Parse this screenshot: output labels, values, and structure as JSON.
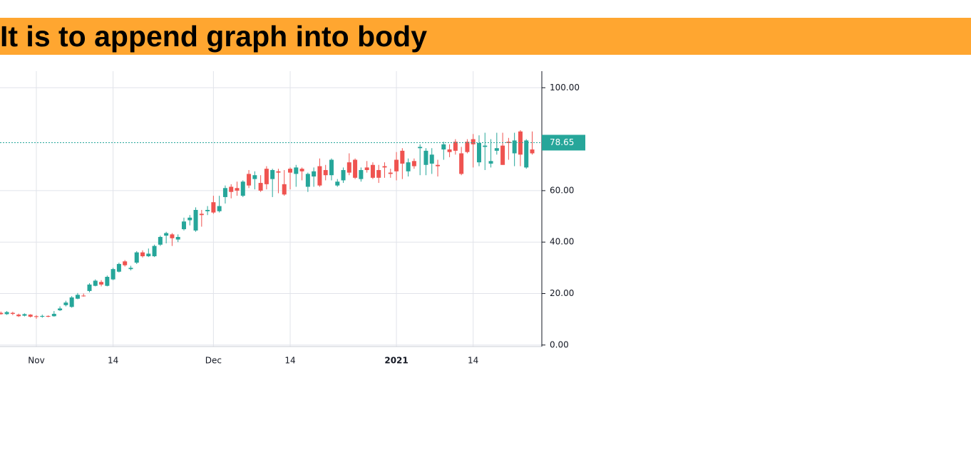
{
  "header": {
    "title": "It is to append graph into body"
  },
  "chart_data": {
    "type": "candlestick",
    "categories": [
      null,
      null,
      null,
      null,
      null,
      null,
      "Nov",
      null,
      null,
      null,
      null,
      null,
      null,
      null,
      null,
      null,
      null,
      null,
      null,
      "14",
      null,
      null,
      null,
      null,
      null,
      null,
      null,
      null,
      null,
      null,
      null,
      null,
      null,
      null,
      null,
      null,
      "Dec",
      null,
      null,
      null,
      null,
      null,
      null,
      null,
      null,
      null,
      null,
      null,
      null,
      "14",
      null,
      null,
      null,
      null,
      null,
      null,
      null,
      null,
      null,
      null,
      null,
      null,
      null,
      null,
      null,
      null,
      null,
      "2021",
      null,
      null,
      null,
      null,
      null,
      null,
      null,
      null,
      null,
      null,
      null,
      null,
      "14",
      null,
      null,
      null,
      null,
      null,
      null,
      null,
      null,
      null,
      null
    ],
    "open": [
      12.5,
      12.0,
      12.5,
      11.8,
      11.4,
      11.8,
      11.2,
      11.0,
      11.3,
      11.2,
      13.5,
      15.5,
      14.8,
      18.0,
      19.2,
      21.0,
      23.0,
      24.5,
      23.0,
      25.5,
      28.5,
      32.5,
      29.5,
      32.0,
      36.0,
      34.5,
      34.5,
      39.0,
      42.5,
      43.0,
      41.0,
      45.0,
      48.5,
      44.5,
      51.0,
      52.0,
      55.5,
      52.0,
      57.5,
      61.5,
      61.0,
      58.0,
      66.5,
      64.5,
      63.0,
      68.5,
      64.5,
      67.5,
      62.5,
      68.5,
      66.5,
      68.5,
      61.5,
      65.5,
      69.5,
      68.0,
      66.0,
      62.0,
      64.0,
      71.0,
      72.0,
      64.5,
      69.0,
      70.0,
      68.0,
      69.5,
      67.0,
      72.0,
      75.5,
      67.5,
      71.5,
      76.5,
      70.0,
      70.5,
      70.0,
      76.0,
      76.0,
      79.0,
      74.5,
      79.0,
      80.0,
      71.0,
      77.0,
      70.5,
      75.5,
      77.5,
      79.0,
      74.5,
      83.0,
      69.0,
      76.0
    ],
    "high": [
      13.0,
      13.2,
      12.9,
      12.2,
      12.3,
      12.0,
      11.6,
      11.8,
      11.5,
      13.2,
      15.0,
      17.2,
      19.0,
      20.2,
      20.0,
      24.0,
      25.5,
      25.2,
      27.0,
      30.0,
      32.0,
      33.0,
      30.8,
      36.5,
      36.8,
      37.5,
      39.0,
      42.5,
      44.0,
      43.5,
      43.0,
      49.5,
      50.5,
      53.5,
      52.5,
      54.0,
      58.0,
      58.0,
      62.0,
      62.5,
      63.5,
      64.0,
      68.0,
      67.5,
      66.0,
      69.5,
      68.5,
      68.5,
      68.0,
      69.0,
      70.0,
      69.0,
      67.0,
      69.0,
      72.5,
      70.0,
      72.5,
      64.5,
      69.0,
      74.5,
      72.5,
      69.0,
      71.5,
      71.0,
      70.0,
      71.0,
      68.5,
      75.0,
      76.5,
      72.5,
      72.5,
      78.0,
      76.5,
      76.5,
      72.0,
      79.0,
      78.0,
      80.0,
      77.0,
      80.0,
      82.0,
      81.5,
      82.5,
      80.0,
      82.5,
      82.5,
      80.5,
      82.5,
      83.5,
      80.0,
      83.0
    ],
    "low": [
      11.8,
      11.7,
      11.6,
      10.9,
      11.1,
      10.7,
      10.2,
      10.6,
      10.8,
      11.0,
      13.2,
      15.0,
      14.5,
      17.8,
      18.8,
      20.5,
      22.8,
      22.8,
      22.8,
      25.2,
      28.2,
      30.5,
      29.0,
      31.5,
      34.0,
      34.2,
      34.2,
      38.5,
      39.5,
      38.5,
      40.0,
      44.5,
      46.5,
      44.0,
      46.0,
      50.5,
      51.0,
      51.5,
      55.0,
      57.0,
      58.0,
      57.5,
      61.0,
      60.5,
      59.5,
      60.5,
      57.5,
      59.0,
      58.0,
      60.5,
      61.5,
      64.0,
      59.5,
      61.5,
      61.5,
      64.0,
      64.0,
      61.5,
      63.0,
      66.0,
      64.5,
      63.5,
      67.0,
      64.5,
      63.0,
      65.0,
      65.0,
      64.0,
      64.5,
      65.5,
      68.5,
      66.0,
      66.0,
      66.5,
      65.5,
      72.0,
      73.0,
      74.0,
      66.0,
      74.5,
      69.0,
      69.5,
      68.0,
      69.0,
      74.0,
      70.0,
      72.0,
      69.5,
      69.5,
      68.5,
      74.0
    ],
    "close": [
      12.0,
      12.8,
      12.1,
      11.2,
      12.0,
      11.0,
      10.9,
      11.3,
      11.0,
      12.1,
      14.2,
      16.5,
      18.5,
      19.5,
      19.0,
      23.5,
      25.0,
      23.5,
      26.5,
      29.5,
      31.5,
      31.0,
      30.0,
      36.0,
      34.5,
      35.5,
      38.5,
      42.0,
      43.5,
      41.5,
      42.0,
      48.0,
      49.5,
      52.5,
      50.5,
      52.5,
      51.5,
      54.0,
      61.0,
      59.5,
      60.0,
      63.5,
      62.0,
      66.0,
      60.0,
      62.5,
      68.0,
      67.0,
      58.5,
      67.0,
      69.0,
      67.5,
      66.5,
      67.5,
      62.0,
      66.0,
      72.0,
      63.5,
      68.0,
      67.0,
      65.0,
      68.0,
      68.0,
      65.0,
      65.0,
      69.0,
      66.5,
      67.5,
      70.5,
      71.0,
      69.5,
      77.0,
      75.5,
      74.0,
      69.5,
      78.0,
      75.0,
      75.5,
      66.5,
      75.0,
      78.0,
      78.5,
      77.5,
      71.5,
      76.5,
      70.0,
      78.5,
      79.5,
      74.0,
      79.5,
      74.5
    ],
    "up_color": "#26a69a",
    "down_color": "#ef5350",
    "last_price": 78.65,
    "ylim": [
      -0.6,
      104.5
    ],
    "yticks": [
      {
        "value": 0,
        "label": "0.00"
      },
      {
        "value": 20,
        "label": "20.00"
      },
      {
        "value": 40,
        "label": "40.00"
      },
      {
        "value": 60,
        "label": "60.00"
      },
      {
        "value": 100,
        "label": "100.00"
      }
    ],
    "grid": true
  }
}
